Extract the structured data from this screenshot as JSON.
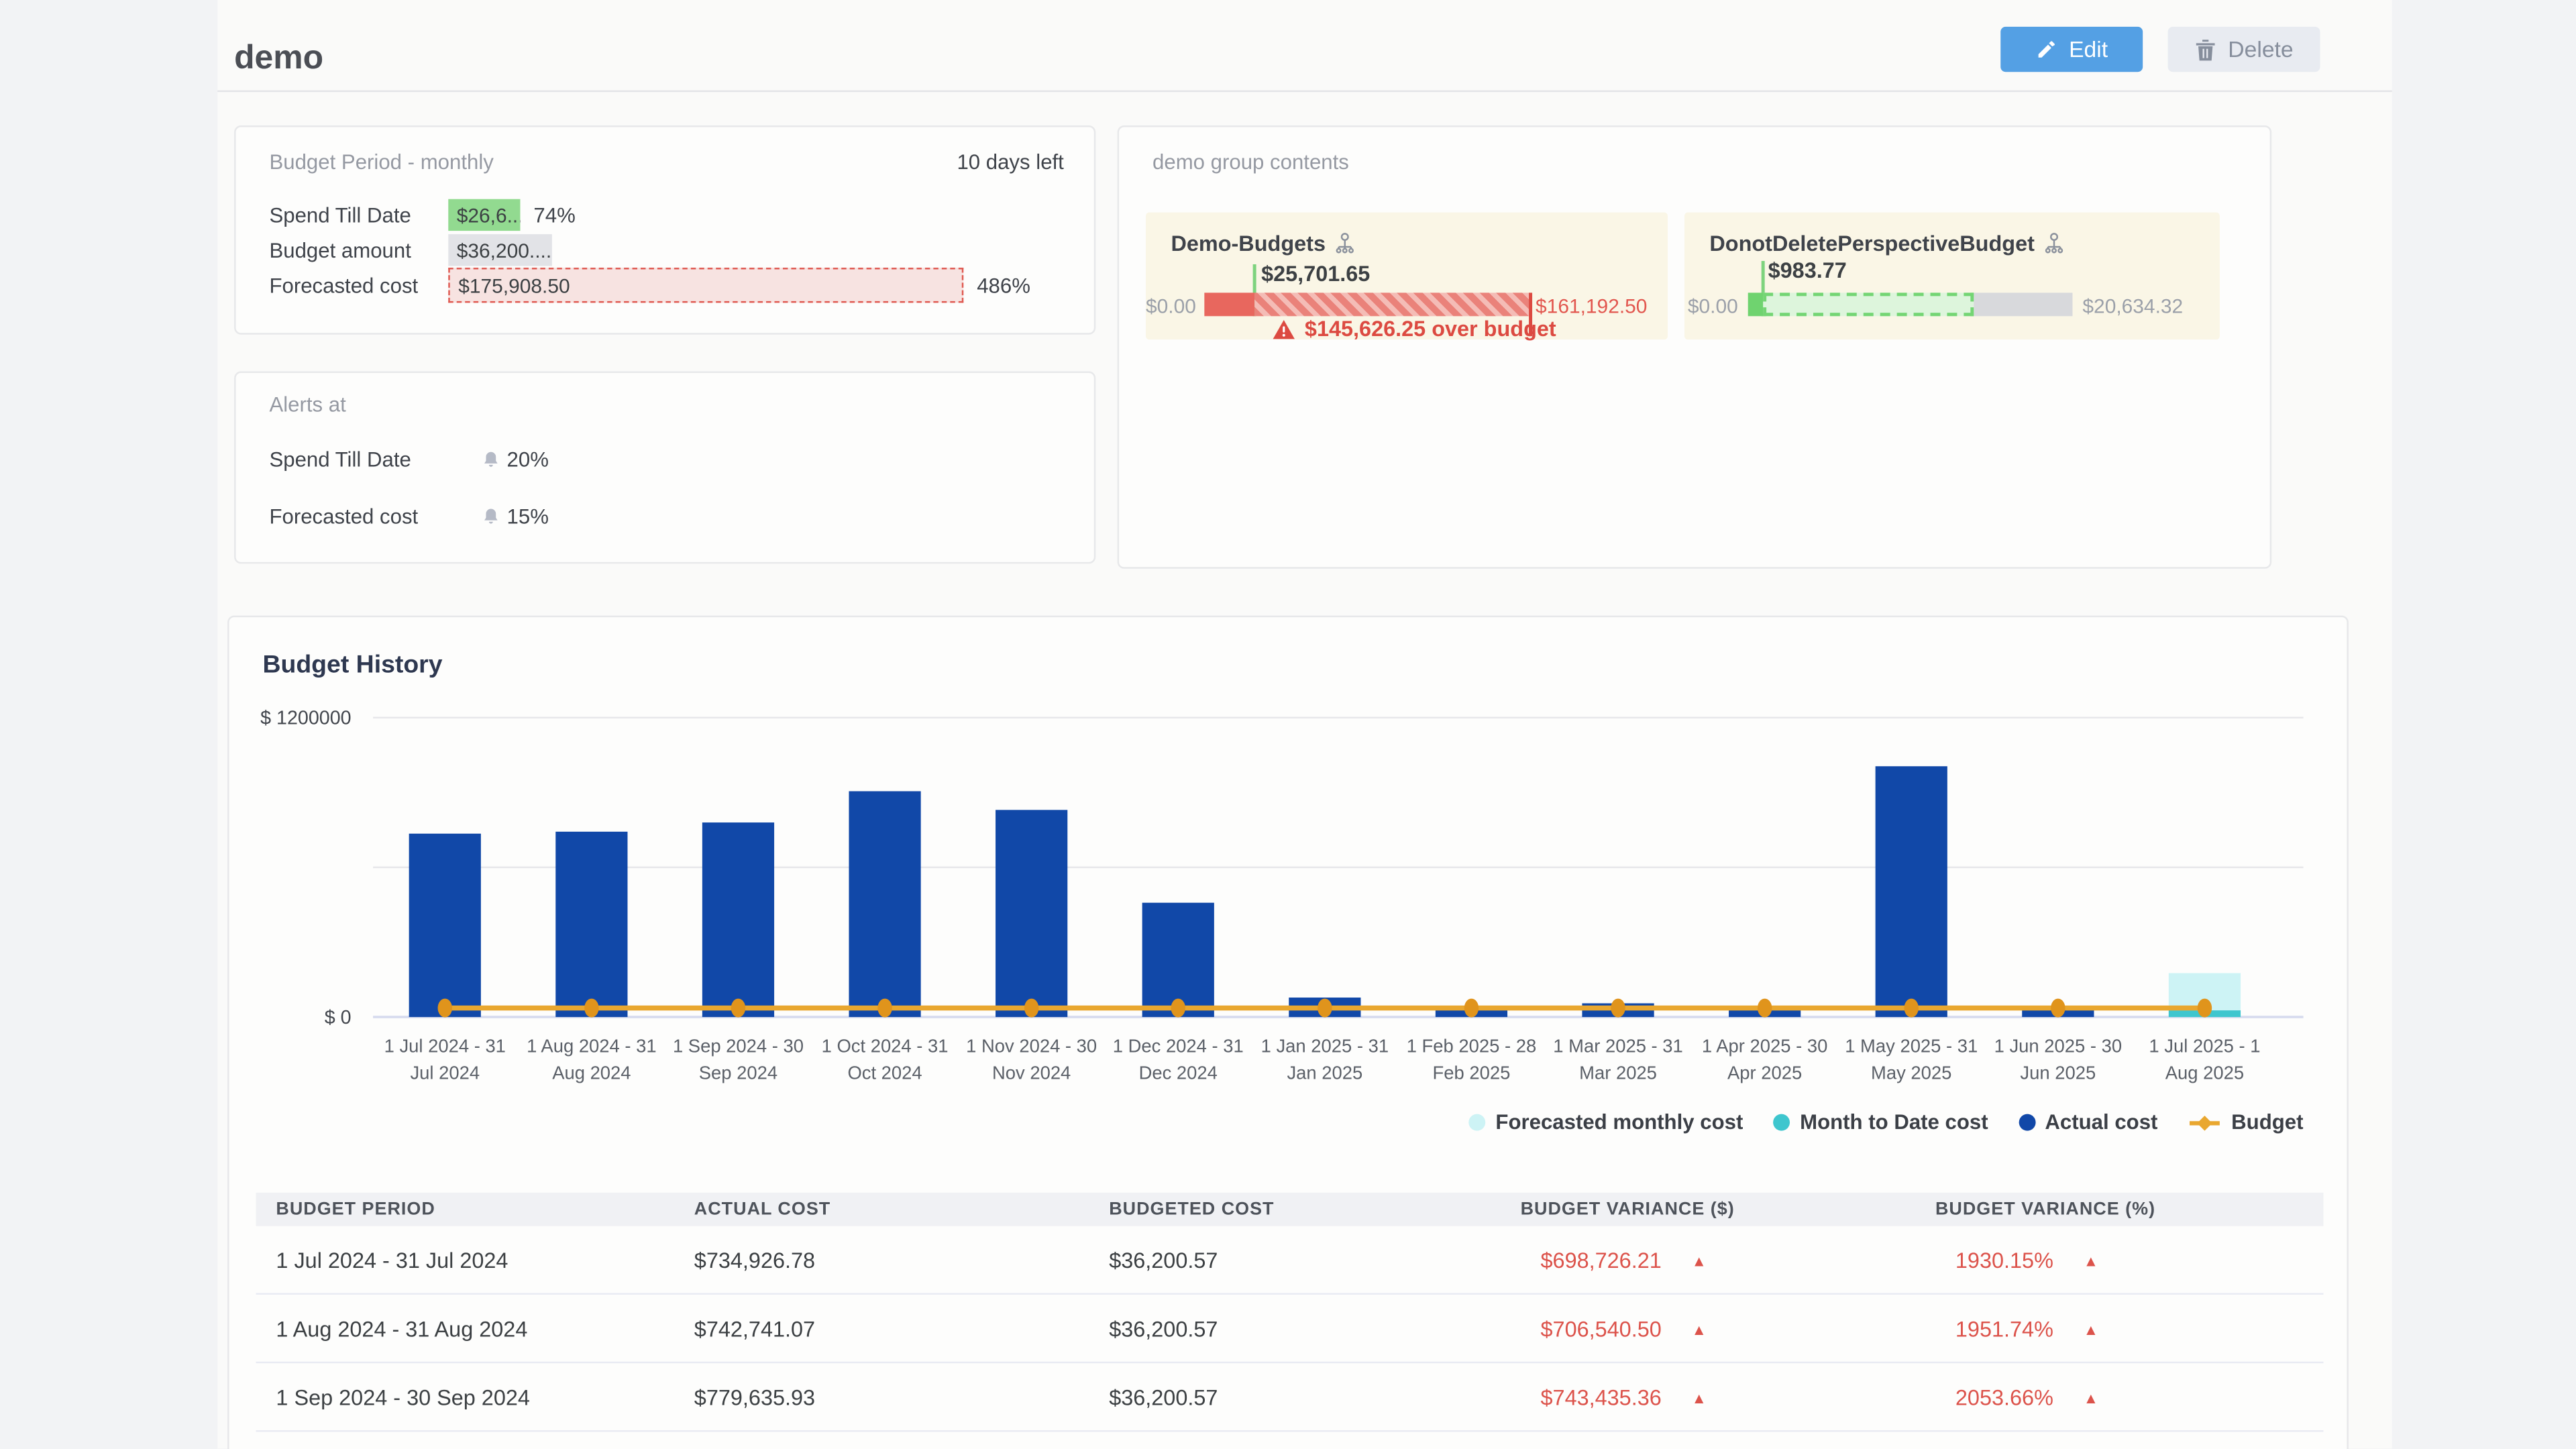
{
  "page": {
    "title": "demo"
  },
  "toolbar": {
    "edit_label": "Edit",
    "delete_label": "Delete"
  },
  "budget_period_card": {
    "title": "Budget Period - monthly",
    "days_left": "10 days left",
    "rows": [
      {
        "label": "Spend Till Date",
        "value": "$26,6...",
        "percent": "74%"
      },
      {
        "label": "Budget amount",
        "value": "$36,200....",
        "percent": ""
      },
      {
        "label": "Forecasted cost",
        "value": "$175,908.50",
        "percent": "486%"
      }
    ]
  },
  "group_card": {
    "title": "demo group contents",
    "budgets": [
      {
        "name": "Demo-Budgets",
        "current": "$25,701.65",
        "min": "$0.00",
        "max": "$161,192.50",
        "alert": "$145,626.25 over budget",
        "status": "over-budget"
      },
      {
        "name": "DonotDeletePerspectiveBudget",
        "current": "$983.77",
        "min": "$0.00",
        "max": "$20,634.32",
        "status": "under-budget"
      }
    ]
  },
  "alerts_card": {
    "title": "Alerts at",
    "rows": [
      {
        "label": "Spend Till Date",
        "value": "20%"
      },
      {
        "label": "Forecasted cost",
        "value": "15%"
      }
    ]
  },
  "history": {
    "title": "Budget History",
    "chart_data": {
      "type": "bar",
      "title": "Budget History",
      "ylim": [
        0,
        1200000
      ],
      "grid": true,
      "gridlines": [
        1200000,
        600000,
        0
      ],
      "y_axis_labels": [
        {
          "value": 1200000,
          "text": "$ 1200000"
        },
        {
          "value": 0,
          "text": "$ 0"
        }
      ],
      "categories": [
        "1 Jul 2024 - 31 Jul 2024",
        "1 Aug 2024 - 31 Aug 2024",
        "1 Sep 2024 - 30 Sep 2024",
        "1 Oct 2024 - 31 Oct 2024",
        "1 Nov 2024 - 30 Nov 2024",
        "1 Dec 2024 - 31 Dec 2024",
        "1 Jan 2025 - 31 Jan 2025",
        "1 Feb 2025 - 28 Feb 2025",
        "1 Mar 2025 - 31 Mar 2025",
        "1 Apr 2025 - 30 Apr 2025",
        "1 May 2025 - 31 May 2025",
        "1 Jun 2025 - 30 Jun 2025",
        "1 Jul 2025 - 1 Aug 2025"
      ],
      "x_tick_lines": [
        [
          "1 Jul 2024 - 31",
          "Jul 2024"
        ],
        [
          "1 Aug 2024 - 31",
          "Aug 2024"
        ],
        [
          "1 Sep 2024 - 30",
          "Sep 2024"
        ],
        [
          "1 Oct 2024 - 31",
          "Oct 2024"
        ],
        [
          "1 Nov 2024 - 30",
          "Nov 2024"
        ],
        [
          "1 Dec 2024 - 31",
          "Dec 2024"
        ],
        [
          "1 Jan 2025 - 31",
          "Jan 2025"
        ],
        [
          "1 Feb 2025 - 28",
          "Feb 2025"
        ],
        [
          "1 Mar 2025 - 31",
          "Mar 2025"
        ],
        [
          "1 Apr 2025 - 30",
          "Apr 2025"
        ],
        [
          "1 May 2025 - 31",
          "May 2025"
        ],
        [
          "1 Jun 2025 - 30",
          "Jun 2025"
        ],
        [
          "1 Jul 2025 - 1",
          "Aug 2025"
        ]
      ],
      "series": [
        {
          "name": "Actual cost",
          "type": "bar",
          "color": "#1148a8",
          "values": [
            734926.78,
            742741.07,
            779635.93,
            905000,
            830000,
            458000,
            78000,
            30000,
            55000,
            32000,
            1005000,
            32000,
            null
          ]
        },
        {
          "name": "Month to Date cost",
          "type": "bar",
          "color": "#3ec6ce",
          "values": [
            null,
            null,
            null,
            null,
            null,
            null,
            null,
            null,
            null,
            null,
            null,
            null,
            26600
          ]
        },
        {
          "name": "Forecasted monthly cost",
          "type": "bar",
          "color": "#cdf3f5",
          "values": [
            null,
            null,
            null,
            null,
            null,
            null,
            null,
            null,
            null,
            null,
            null,
            null,
            175908.5
          ]
        },
        {
          "name": "Budget",
          "type": "line",
          "color": "#e9a72f",
          "values": [
            36200.57,
            36200.57,
            36200.57,
            36200.57,
            36200.57,
            36200.57,
            36200.57,
            36200.57,
            36200.57,
            36200.57,
            36200.57,
            36200.57,
            36200.57
          ]
        }
      ],
      "legend": [
        {
          "label": "Forecasted monthly cost",
          "color": "#cdf3f5",
          "marker": "circle"
        },
        {
          "label": "Month to Date cost",
          "color": "#3ec6ce",
          "marker": "circle"
        },
        {
          "label": "Actual cost",
          "color": "#1148a8",
          "marker": "circle"
        },
        {
          "label": "Budget",
          "color": "#e9a72f",
          "marker": "line-diamond"
        }
      ],
      "legend_position": "bottom-right"
    },
    "table": {
      "columns": [
        "BUDGET PERIOD",
        "ACTUAL COST",
        "BUDGETED COST",
        "BUDGET VARIANCE ($)",
        "BUDGET VARIANCE (%)"
      ],
      "rows": [
        {
          "period": "1 Jul 2024 - 31 Jul 2024",
          "actual": "$734,926.78",
          "budgeted": "$36,200.57",
          "variance_usd": "$698,726.21",
          "variance_pct": "1930.15%",
          "direction": "up"
        },
        {
          "period": "1 Aug 2024 - 31 Aug 2024",
          "actual": "$742,741.07",
          "budgeted": "$36,200.57",
          "variance_usd": "$706,540.50",
          "variance_pct": "1951.74%",
          "direction": "up"
        },
        {
          "period": "1 Sep 2024 - 30 Sep 2024",
          "actual": "$779,635.93",
          "budgeted": "$36,200.57",
          "variance_usd": "$743,435.36",
          "variance_pct": "2053.66%",
          "direction": "up"
        }
      ]
    }
  },
  "colors": {
    "accent_blue": "#54a0e4",
    "bar_blue": "#1148a8",
    "budget_orange": "#e9a72f",
    "mtd_teal": "#3ec6ce",
    "forecast_cyan": "#cdf3f5",
    "danger_red": "#dc534b",
    "ok_green": "#92da90"
  }
}
